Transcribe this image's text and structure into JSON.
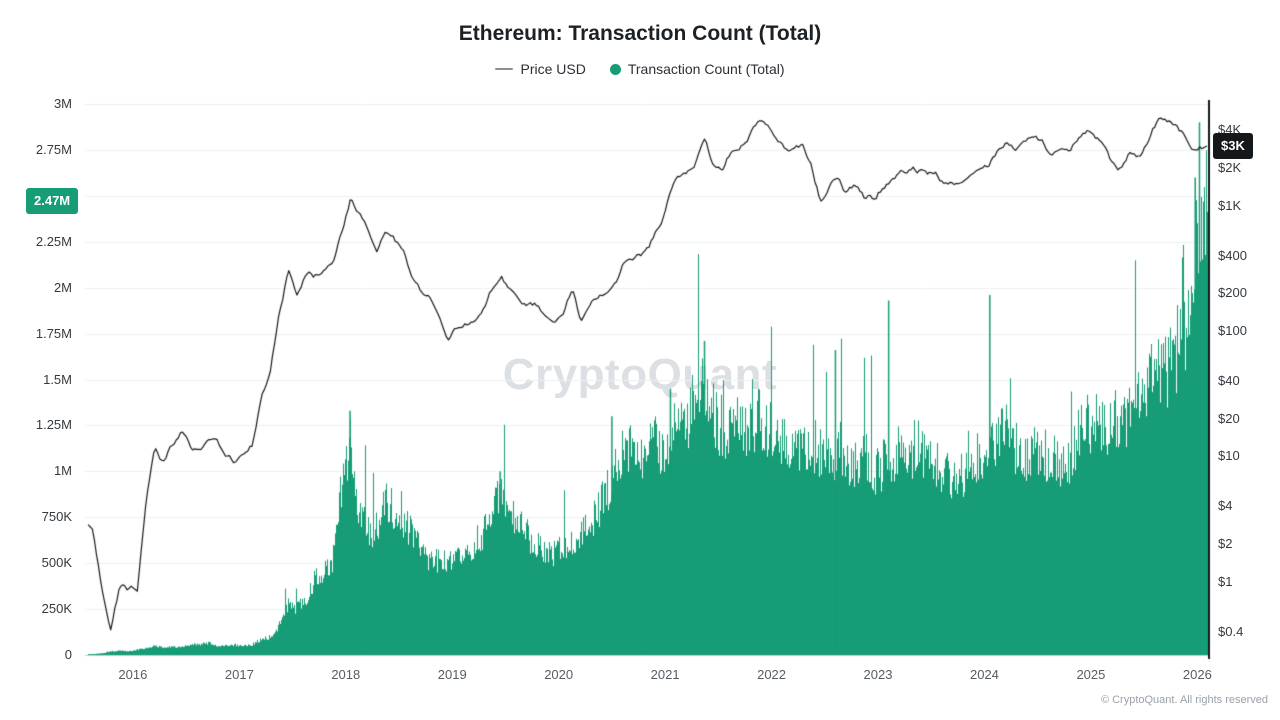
{
  "header": {
    "title": "Ethereum: Transaction Count (Total)"
  },
  "legend": {
    "position": "top",
    "items": [
      {
        "id": "price-usd",
        "label": "Price USD",
        "marker": "line",
        "color": "#8c9196"
      },
      {
        "id": "transaction-count",
        "label": "Transaction Count (Total)",
        "marker": "dot",
        "color": "#169c76"
      }
    ]
  },
  "watermark": {
    "text": "CryptoQuant"
  },
  "footer": {
    "text": "© CryptoQuant. All rights reserved"
  },
  "badges": {
    "left": {
      "label": "2.47M",
      "value_millions": 2.47,
      "color": "#169c76"
    },
    "right": {
      "label": "$3K",
      "value_usd": 3000,
      "color": "#15181b"
    }
  },
  "chart_data": {
    "type": "mixed",
    "title": "Ethereum: Transaction Count (Total)",
    "legend_position": "top",
    "grid": "horizontal",
    "x_axis": {
      "range": [
        2015.55,
        2026.1
      ],
      "ticks": [
        2016,
        2017,
        2018,
        2019,
        2020,
        2021,
        2022,
        2023,
        2024,
        2025,
        2026
      ]
    },
    "left_axis": {
      "series": "Transaction Count (Total)",
      "scale": "linear",
      "range_millions": [
        0,
        3
      ],
      "ticks": [
        {
          "label": "0",
          "value": 0
        },
        {
          "label": "250K",
          "value": 0.25
        },
        {
          "label": "500K",
          "value": 0.5
        },
        {
          "label": "750K",
          "value": 0.75
        },
        {
          "label": "1M",
          "value": 1
        },
        {
          "label": "1.25M",
          "value": 1.25
        },
        {
          "label": "1.5M",
          "value": 1.5
        },
        {
          "label": "1.75M",
          "value": 1.75
        },
        {
          "label": "2M",
          "value": 2
        },
        {
          "label": "2.25M",
          "value": 2.25
        },
        {
          "label": "2.5M",
          "value": 2.5
        },
        {
          "label": "2.75M",
          "value": 2.75
        },
        {
          "label": "3M",
          "value": 3
        }
      ]
    },
    "right_axis": {
      "series": "Price USD",
      "scale": "log",
      "range_usd": [
        0.26,
        6500
      ],
      "ticks": [
        {
          "label": "$4K",
          "value": 4000
        },
        {
          "label": "$2K",
          "value": 2000
        },
        {
          "label": "$1K",
          "value": 1000
        },
        {
          "label": "$400",
          "value": 400
        },
        {
          "label": "$200",
          "value": 200
        },
        {
          "label": "$100",
          "value": 100
        },
        {
          "label": "$40",
          "value": 40
        },
        {
          "label": "$20",
          "value": 20
        },
        {
          "label": "$10",
          "value": 10
        },
        {
          "label": "$4",
          "value": 4
        },
        {
          "label": "$2",
          "value": 2
        },
        {
          "label": "$1",
          "value": 1
        },
        {
          "label": "$0.4",
          "value": 0.4
        }
      ]
    },
    "series": [
      {
        "name": "Transaction Count (Total)",
        "type": "bar",
        "color": "#169c76",
        "unit": "transactions per day (millions)",
        "start_year": 2015,
        "start_month": 8,
        "latest_value_millions": 2.47,
        "monthly_values_millions": [
          0.005,
          0.01,
          0.02,
          0.025,
          0.02,
          0.03,
          0.04,
          0.05,
          0.045,
          0.045,
          0.05,
          0.055,
          0.06,
          0.065,
          0.05,
          0.05,
          0.055,
          0.05,
          0.06,
          0.09,
          0.1,
          0.17,
          0.28,
          0.26,
          0.32,
          0.42,
          0.47,
          0.52,
          0.95,
          1.2,
          0.78,
          0.68,
          0.72,
          0.85,
          0.8,
          0.74,
          0.67,
          0.57,
          0.54,
          0.53,
          0.5,
          0.52,
          0.56,
          0.62,
          0.68,
          0.78,
          0.92,
          0.78,
          0.72,
          0.66,
          0.62,
          0.59,
          0.56,
          0.6,
          0.65,
          0.68,
          0.72,
          0.82,
          0.93,
          1.02,
          1.16,
          1.22,
          1.12,
          1.16,
          1.16,
          1.2,
          1.26,
          1.32,
          1.42,
          1.55,
          1.32,
          1.26,
          1.3,
          1.27,
          1.26,
          1.3,
          1.26,
          1.25,
          1.18,
          1.16,
          1.2,
          1.2,
          1.12,
          1.1,
          1.16,
          1.1,
          1.06,
          1.1,
          1.02,
          1.06,
          1.1,
          1.12,
          1.1,
          1.18,
          1.06,
          1.04,
          1.02,
          1.0,
          1.02,
          1.06,
          1.1,
          1.16,
          1.22,
          1.28,
          1.16,
          1.12,
          1.16,
          1.1,
          1.12,
          1.06,
          1.1,
          1.2,
          1.3,
          1.3,
          1.26,
          1.3,
          1.28,
          1.34,
          1.44,
          1.5,
          1.6,
          1.55,
          1.68,
          1.8,
          2.15,
          2.47
        ],
        "spikes": [
          {
            "x": 2018.04,
            "value": 1.33
          },
          {
            "x": 2019.45,
            "value": 1.0
          },
          {
            "x": 2020.5,
            "value": 1.3
          },
          {
            "x": 2021.05,
            "value": 1.45
          },
          {
            "x": 2021.37,
            "value": 1.71
          },
          {
            "x": 2022.6,
            "value": 1.66
          },
          {
            "x": 2023.1,
            "value": 1.93
          },
          {
            "x": 2024.05,
            "value": 1.96
          },
          {
            "x": 2025.98,
            "value": 2.6
          },
          {
            "x": 2026.02,
            "value": 2.9
          }
        ]
      },
      {
        "name": "Price USD",
        "type": "line",
        "color": "#17191c",
        "unit": "USD",
        "start_year": 2015,
        "start_month": 8,
        "latest_value_usd": 3000,
        "monthly_values_usd": [
          2.8,
          1.0,
          0.45,
          0.95,
          0.88,
          0.95,
          4.5,
          11,
          8.8,
          11.5,
          14,
          11.5,
          11,
          13,
          12,
          9.8,
          8.2,
          10.5,
          13,
          35,
          48,
          150,
          320,
          220,
          300,
          290,
          300,
          380,
          680,
          1150,
          880,
          600,
          480,
          650,
          510,
          450,
          300,
          220,
          210,
          150,
          95,
          118,
          125,
          135,
          165,
          245,
          300,
          230,
          190,
          180,
          180,
          150,
          132,
          155,
          240,
          135,
          180,
          210,
          230,
          280,
          400,
          360,
          380,
          500,
          640,
          1250,
          1650,
          1800,
          2300,
          3600,
          2300,
          2200,
          3100,
          3200,
          3900,
          4550,
          3950,
          3050,
          2800,
          2950,
          3050,
          2000,
          1050,
          1500,
          1700,
          1350,
          1450,
          1200,
          1200,
          1550,
          1650,
          1750,
          1900,
          1850,
          1800,
          1900,
          1700,
          1650,
          1750,
          2000,
          2250,
          2350,
          2950,
          3600,
          3150,
          3500,
          3500,
          3300,
          2600,
          2500,
          2550,
          3300,
          3600,
          3200,
          2700,
          1950,
          1800,
          2500,
          2450,
          3300,
          4500,
          4300,
          4000,
          3300,
          3000,
          3000
        ]
      }
    ],
    "render": {
      "noise_seed": 1337,
      "bar_noise": 0.28,
      "line_noise": 0.05
    }
  }
}
